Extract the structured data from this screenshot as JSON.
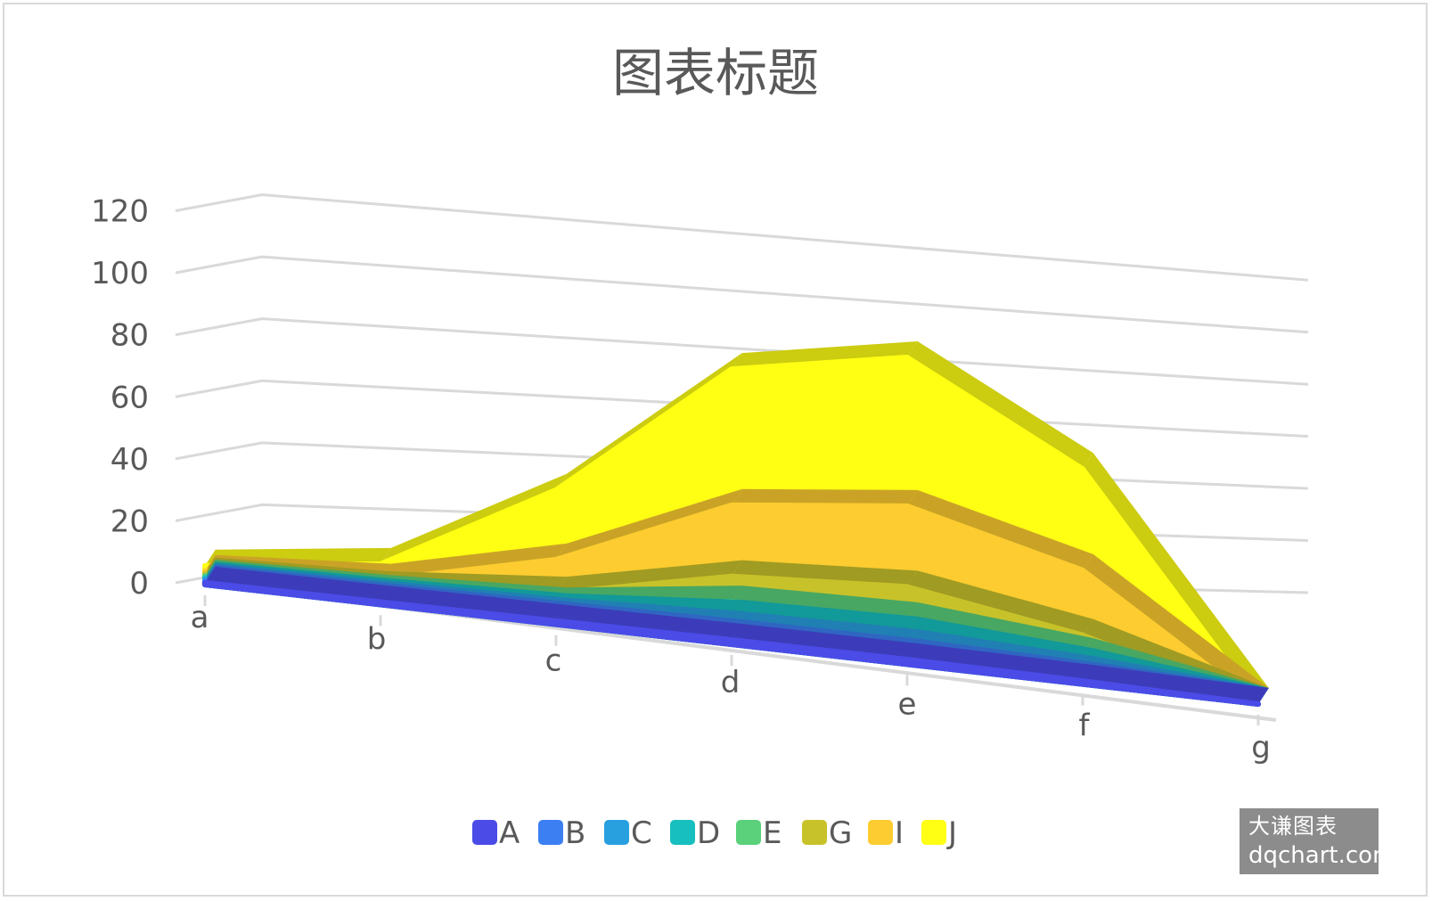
{
  "chart_data": {
    "type": "area",
    "stacked": true,
    "three_d": true,
    "title": "图表标题",
    "categories": [
      "a",
      "b",
      "c",
      "d",
      "e",
      "f",
      "g"
    ],
    "yticks": [
      "0",
      "20",
      "40",
      "60",
      "80",
      "100",
      "120"
    ],
    "ylim": [
      0,
      120
    ],
    "grid": true,
    "legend_position": "bottom",
    "series": [
      {
        "name": "A",
        "color": "#4b4be8",
        "values": [
          0.6,
          0.8,
          1.1,
          1.4,
          1.5,
          1.0,
          0
        ]
      },
      {
        "name": "B",
        "color": "#3b7ff2",
        "values": [
          0.6,
          0.8,
          1.1,
          1.4,
          1.5,
          1.0,
          0
        ]
      },
      {
        "name": "C",
        "color": "#28a0e0",
        "values": [
          0.5,
          0.8,
          1.2,
          2.6,
          3.0,
          1.8,
          0
        ]
      },
      {
        "name": "D",
        "color": "#17bfbf",
        "values": [
          0.5,
          0.8,
          1.4,
          3.6,
          4.0,
          2.5,
          0
        ]
      },
      {
        "name": "E",
        "color": "#5ad17a",
        "values": [
          0.6,
          1.0,
          1.8,
          4.5,
          4.5,
          3.2,
          0
        ]
      },
      {
        "name": "G",
        "color": "#c8c22a",
        "values": [
          0.7,
          1.2,
          3.4,
          8.0,
          10.0,
          6.0,
          0
        ]
      },
      {
        "name": "I",
        "color": "#fccc30",
        "values": [
          0.8,
          2.4,
          10.5,
          22.5,
          25.5,
          20.5,
          0
        ]
      },
      {
        "name": "J",
        "color": "#ffff14",
        "values": [
          1.7,
          5.0,
          22.0,
          43.0,
          47.0,
          32.0,
          0
        ]
      }
    ]
  },
  "watermark": {
    "line1": "大谦图表",
    "line2": "dqchart.com"
  }
}
